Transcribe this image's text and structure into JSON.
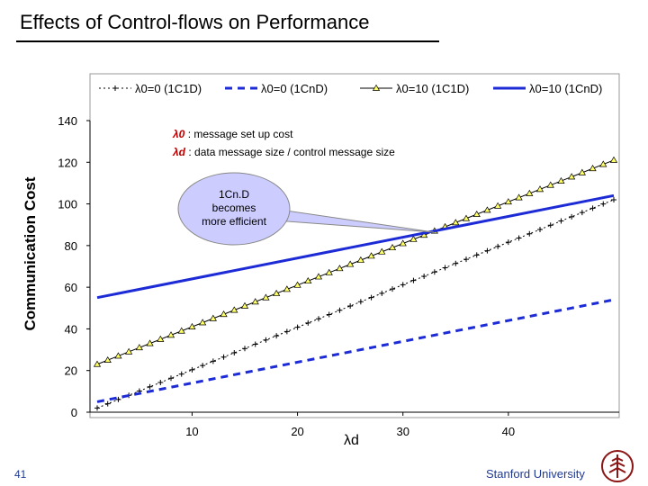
{
  "slide": {
    "title": "Effects of Control-flows on Performance",
    "page_number": "41",
    "footer": "Stanford University"
  },
  "colors": {
    "blue": "#1c2bd6",
    "yellow": "#ffff66",
    "black": "#000000"
  },
  "chart_data": {
    "type": "line",
    "xlabel": "λd",
    "ylabel": "Communication Cost",
    "xlim": [
      1,
      50
    ],
    "ylim": [
      0,
      140
    ],
    "xticks": [
      10,
      20,
      30,
      40
    ],
    "yticks": [
      0,
      20,
      40,
      60,
      80,
      100,
      120,
      140
    ],
    "grid": false,
    "legend": "top",
    "annotations": {
      "definitions": [
        {
          "symbol": "λ0",
          "text": " : message set up cost"
        },
        {
          "symbol": "λd",
          "text": " : data message size / control message size"
        }
      ],
      "callout": [
        "1Cn.D",
        "becomes",
        "more efficient"
      ]
    },
    "series": [
      {
        "name": "λ0=0 (1C1D)",
        "style": "dotted-plus",
        "color": "#000000",
        "x": [
          1,
          50
        ],
        "y": [
          2,
          102
        ]
      },
      {
        "name": "λ0=0 (1CnD)",
        "style": "dashed",
        "color": "#1c2bd6",
        "x": [
          1,
          50
        ],
        "y": [
          5,
          54
        ]
      },
      {
        "name": "λ0=10 (1C1D)",
        "style": "triangle",
        "color": "#000000",
        "x": [
          1,
          50
        ],
        "y": [
          23,
          121
        ]
      },
      {
        "name": "λ0=10 (1CnD)",
        "style": "solid",
        "color": "#1c2bd6",
        "x": [
          1,
          50
        ],
        "y": [
          55,
          104
        ]
      }
    ]
  }
}
